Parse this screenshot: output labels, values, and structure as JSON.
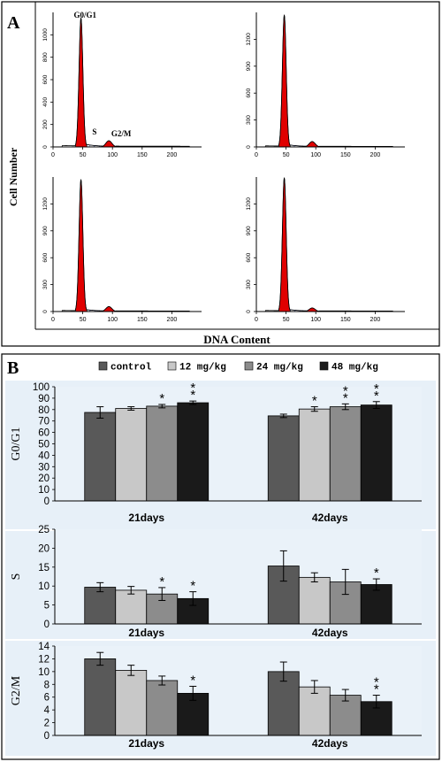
{
  "panel_a": {
    "label": "A",
    "ylabel": "Cell Number",
    "xlabel": "DNA  Content",
    "peak_labels": {
      "g0g1": "G0/G1",
      "s": "S",
      "g2m": "G2/M"
    },
    "chart_data": [
      {
        "type": "area",
        "x_ticks": [
          0,
          50,
          100,
          150,
          200
        ],
        "y_ticks": [
          0,
          200,
          400,
          600,
          800,
          1000
        ],
        "ylim": [
          0,
          1200
        ],
        "g0g1_peak": 1150,
        "g2m_peak": 55
      },
      {
        "type": "area",
        "x_ticks": [
          0,
          50,
          100,
          150,
          200
        ],
        "y_ticks": [
          0,
          300,
          600,
          900,
          1200
        ],
        "ylim": [
          0,
          1500
        ],
        "g0g1_peak": 1470,
        "g2m_peak": 60
      },
      {
        "type": "area",
        "x_ticks": [
          0,
          50,
          100,
          150,
          200
        ],
        "y_ticks": [
          0,
          300,
          600,
          900,
          1200
        ],
        "ylim": [
          0,
          1500
        ],
        "g0g1_peak": 1470,
        "g2m_peak": 55
      },
      {
        "type": "area",
        "x_ticks": [
          0,
          50,
          100,
          150,
          200
        ],
        "y_ticks": [
          0,
          300,
          600,
          900,
          1200
        ],
        "ylim": [
          0,
          1500
        ],
        "g0g1_peak": 1490,
        "g2m_peak": 40
      }
    ]
  },
  "panel_b": {
    "label": "B",
    "legend": [
      "control",
      "12 mg/kg",
      "24 mg/kg",
      "48 mg/kg"
    ],
    "colors": [
      "#595959",
      "#c8c8c8",
      "#8c8c8c",
      "#1a1a1a"
    ],
    "chart_data": [
      {
        "type": "bar",
        "ylabel": "G0/G1",
        "categories": [
          "21days",
          "42days"
        ],
        "ylim": [
          0,
          100
        ],
        "y_ticks": [
          0,
          10,
          20,
          30,
          40,
          50,
          60,
          70,
          80,
          90,
          100
        ],
        "series": [
          {
            "name": "control",
            "values": [
              77.5,
              74.5
            ],
            "errors": [
              5,
              1.5
            ]
          },
          {
            "name": "12 mg/kg",
            "values": [
              81,
              80.5
            ],
            "errors": [
              1.5,
              2
            ]
          },
          {
            "name": "24 mg/kg",
            "values": [
              83,
              82.5
            ],
            "errors": [
              1.5,
              2.5
            ]
          },
          {
            "name": "48 mg/kg",
            "values": [
              86,
              84
            ],
            "errors": [
              1.5,
              3
            ]
          }
        ],
        "annotations": [
          [
            "",
            ""
          ],
          [
            "",
            "*"
          ],
          [
            "*",
            "**"
          ],
          [
            "**",
            "**"
          ]
        ]
      },
      {
        "type": "bar",
        "ylabel": "S",
        "categories": [
          "21days",
          "42days"
        ],
        "ylim": [
          0,
          25
        ],
        "y_ticks": [
          0,
          5,
          10,
          15,
          20,
          25
        ],
        "series": [
          {
            "name": "control",
            "values": [
              9.7,
              15.3
            ],
            "errors": [
              1.2,
              4
            ]
          },
          {
            "name": "12 mg/kg",
            "values": [
              8.9,
              12.3
            ],
            "errors": [
              1,
              1.2
            ]
          },
          {
            "name": "24 mg/kg",
            "values": [
              7.9,
              11.1
            ],
            "errors": [
              1.7,
              3.3
            ]
          },
          {
            "name": "48 mg/kg",
            "values": [
              6.7,
              10.4
            ],
            "errors": [
              1.8,
              1.5
            ]
          }
        ],
        "annotations": [
          [
            "",
            ""
          ],
          [
            "",
            ""
          ],
          [
            "*",
            ""
          ],
          [
            "*",
            "*"
          ]
        ]
      },
      {
        "type": "bar",
        "ylabel": "G2/M",
        "categories": [
          "21days",
          "42days"
        ],
        "ylim": [
          0,
          14
        ],
        "y_ticks": [
          0,
          2,
          4,
          6,
          8,
          10,
          12,
          14
        ],
        "series": [
          {
            "name": "control",
            "values": [
              12,
              10
            ],
            "errors": [
              1,
              1.5
            ]
          },
          {
            "name": "12 mg/kg",
            "values": [
              10.2,
              7.6
            ],
            "errors": [
              0.8,
              1
            ]
          },
          {
            "name": "24 mg/kg",
            "values": [
              8.6,
              6.3
            ],
            "errors": [
              0.7,
              0.9
            ]
          },
          {
            "name": "48 mg/kg",
            "values": [
              6.6,
              5.3
            ],
            "errors": [
              1.1,
              1
            ]
          }
        ],
        "annotations": [
          [
            "",
            ""
          ],
          [
            "",
            ""
          ],
          [
            "",
            ""
          ],
          [
            "*",
            "**"
          ]
        ]
      }
    ]
  }
}
